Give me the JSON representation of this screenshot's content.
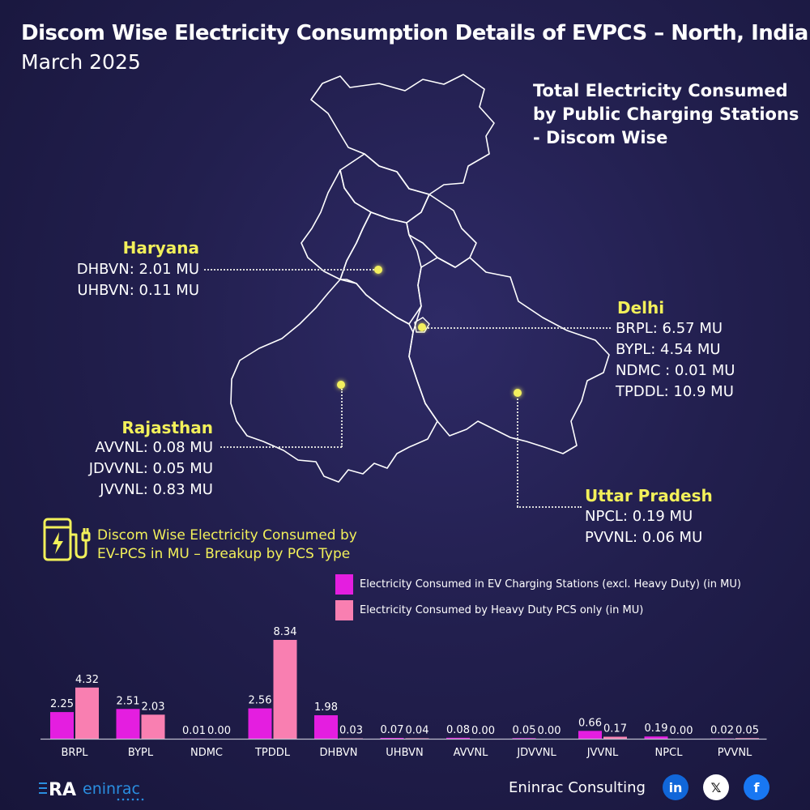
{
  "header": {
    "title": "Discom Wise Electricity Consumption Details of EVPCS – North, India",
    "subtitle": "March 2025"
  },
  "map": {
    "title_lines": [
      "Total Electricity Consumed",
      "by Public Charging Stations",
      "- Discom Wise"
    ],
    "regions": {
      "haryana": {
        "name": "Haryana",
        "lines": [
          "DHBVN: 2.01 MU",
          "UHBVN: 0.11 MU"
        ]
      },
      "delhi": {
        "name": "Delhi",
        "lines": [
          "BRPL: 6.57 MU",
          "BYPL: 4.54 MU",
          "NDMC : 0.01 MU",
          "TPDDL: 10.9 MU"
        ]
      },
      "rajasthan": {
        "name": "Rajasthan",
        "lines": [
          "AVVNL: 0.08 MU",
          "JDVVNL: 0.05 MU",
          "JVVNL: 0.83 MU"
        ]
      },
      "uttar_pradesh": {
        "name": "Uttar Pradesh",
        "lines": [
          "NPCL: 0.19 MU",
          "PVVNL: 0.06 MU"
        ]
      }
    }
  },
  "breakup": {
    "lines": [
      "Discom Wise Electricity Consumed by",
      "EV-PCS in MU – Breakup by PCS Type"
    ]
  },
  "chart_data": {
    "type": "bar",
    "categories": [
      "BRPL",
      "BYPL",
      "NDMC",
      "TPDDL",
      "DHBVN",
      "UHBVN",
      "AVVNL",
      "JDVVNL",
      "JVVNL",
      "NPCL",
      "PVVNL"
    ],
    "series": [
      {
        "name": "Electricity Consumed in EV Charging Stations (excl. Heavy Duty) (in MU)",
        "color": "#e41ee0",
        "values": [
          2.25,
          2.51,
          0.01,
          2.56,
          1.98,
          0.07,
          0.08,
          0.05,
          0.66,
          0.19,
          0.02
        ],
        "labels": [
          "2.25",
          "2.51",
          "0.01",
          "2.56",
          "1.98",
          "0.07",
          "0.08",
          "0.05",
          "0.66",
          "0.19",
          "0.02"
        ]
      },
      {
        "name": "Electricity Consumed by Heavy Duty PCS only (in MU)",
        "color": "#f97fb1",
        "values": [
          4.32,
          2.03,
          0.0,
          8.34,
          0.03,
          0.04,
          0.0,
          0.0,
          0.17,
          0.0,
          0.05
        ],
        "labels": [
          "4.32",
          "2.03",
          "0.00",
          "8.34",
          "0.03",
          "0.04",
          "0.00",
          "0.00",
          "0.17",
          "0.00",
          "0.05"
        ]
      }
    ],
    "ylim": [
      0,
      8.34
    ]
  },
  "footer": {
    "company": "Eninrac Consulting",
    "logo_left": "RA",
    "logo_right": "eninrac",
    "social": [
      {
        "name": "linkedin",
        "glyph": "in",
        "color": "#1167d9"
      },
      {
        "name": "x",
        "glyph": "𝕏",
        "color": "#0d0d0d"
      },
      {
        "name": "facebook",
        "glyph": "f",
        "color": "#1877f2"
      }
    ]
  }
}
